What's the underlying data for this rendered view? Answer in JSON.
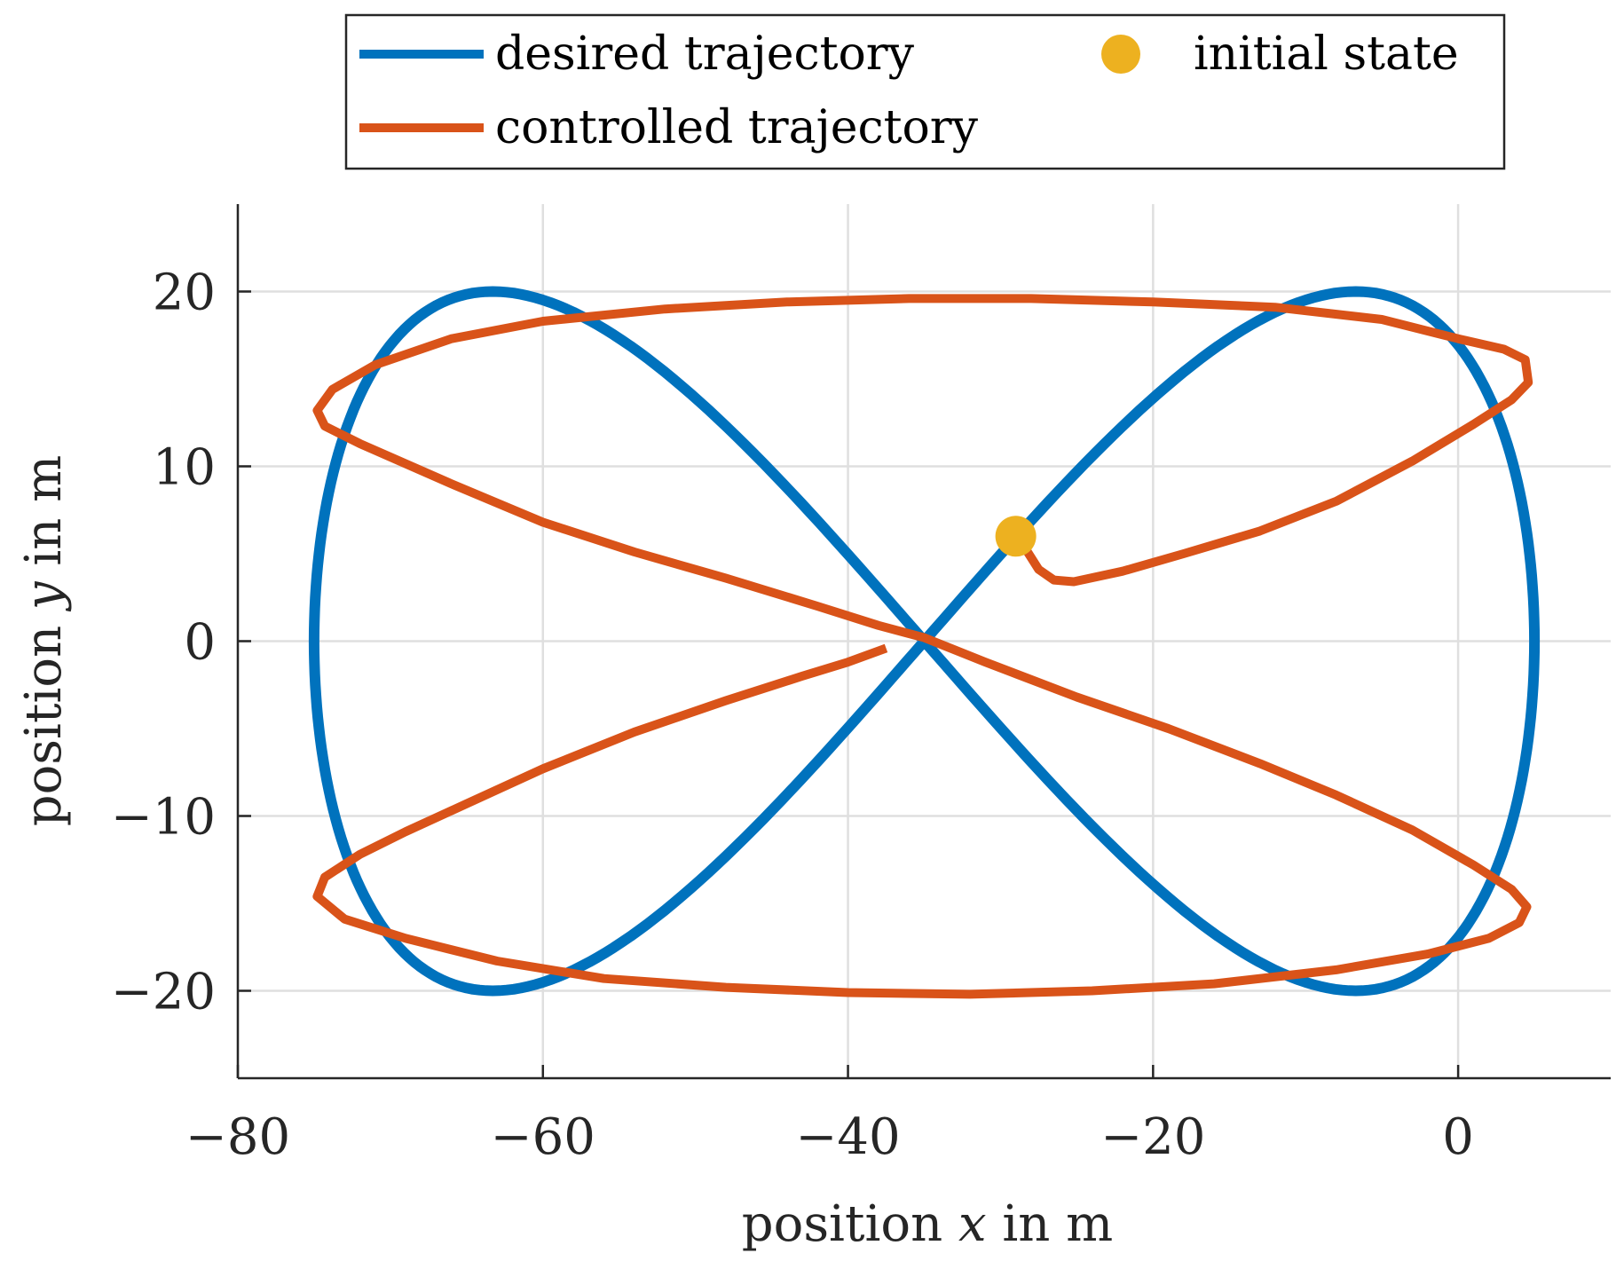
{
  "chart_data": {
    "type": "line",
    "title": "",
    "xlabel": {
      "prefix": "position ",
      "var": "x",
      "suffix": " in m"
    },
    "ylabel": {
      "prefix": "position ",
      "var": "y",
      "suffix": " in m"
    },
    "xlim": [
      -80,
      10
    ],
    "ylim": [
      -25,
      25
    ],
    "xticks": [
      -80,
      -60,
      -40,
      -20,
      0
    ],
    "yticks": [
      -20,
      -10,
      0,
      10,
      20
    ],
    "xtick_labels": [
      "−80",
      "−60",
      "−40",
      "−20",
      "0"
    ],
    "ytick_labels": [
      "−20",
      "−10",
      "0",
      "10",
      "20"
    ],
    "grid": true,
    "legend": {
      "placement": "top, outside plot",
      "entries": [
        {
          "label": "desired trajectory",
          "color": "#0072BD",
          "marker": "line"
        },
        {
          "label": "controlled trajectory",
          "color": "#D95319",
          "marker": "line"
        },
        {
          "label": "initial state",
          "color": "#EDB120",
          "marker": "dot"
        }
      ]
    },
    "series": [
      {
        "name": "desired trajectory",
        "color": "#0072BD",
        "kind": "figure-eight",
        "center": [
          -35,
          0
        ],
        "x_amplitude": 40,
        "y_amplitude": 20
      },
      {
        "name": "controlled trajectory",
        "color": "#D95319",
        "points": [
          [
            -29.0,
            6.0
          ],
          [
            -28.3,
            5.2
          ],
          [
            -27.5,
            4.1
          ],
          [
            -26.5,
            3.5
          ],
          [
            -25.2,
            3.4
          ],
          [
            -22.0,
            4.0
          ],
          [
            -18.0,
            5.0
          ],
          [
            -13.0,
            6.3
          ],
          [
            -8.0,
            8.0
          ],
          [
            -3.0,
            10.3
          ],
          [
            1.0,
            12.4
          ],
          [
            3.5,
            13.8
          ],
          [
            4.6,
            14.8
          ],
          [
            4.4,
            16.1
          ],
          [
            3.0,
            16.7
          ],
          [
            0.0,
            17.3
          ],
          [
            -5.0,
            18.4
          ],
          [
            -12.0,
            19.1
          ],
          [
            -20.0,
            19.4
          ],
          [
            -28.0,
            19.6
          ],
          [
            -36.0,
            19.6
          ],
          [
            -44.0,
            19.4
          ],
          [
            -52.0,
            19.0
          ],
          [
            -60.0,
            18.3
          ],
          [
            -66.0,
            17.3
          ],
          [
            -71.0,
            15.8
          ],
          [
            -73.8,
            14.4
          ],
          [
            -74.8,
            13.2
          ],
          [
            -74.3,
            12.3
          ],
          [
            -72.0,
            11.3
          ],
          [
            -66.0,
            9.0
          ],
          [
            -60.0,
            6.8
          ],
          [
            -54.0,
            5.1
          ],
          [
            -48.0,
            3.6
          ],
          [
            -42.0,
            2.0
          ],
          [
            -38.0,
            0.9
          ],
          [
            -35.0,
            0.2
          ],
          [
            -31.0,
            -1.2
          ],
          [
            -25.0,
            -3.2
          ],
          [
            -19.0,
            -5.0
          ],
          [
            -13.0,
            -7.0
          ],
          [
            -8.0,
            -8.8
          ],
          [
            -3.0,
            -10.8
          ],
          [
            1.0,
            -12.8
          ],
          [
            3.5,
            -14.2
          ],
          [
            4.5,
            -15.2
          ],
          [
            4.0,
            -16.1
          ],
          [
            2.0,
            -17.0
          ],
          [
            -2.0,
            -17.9
          ],
          [
            -8.0,
            -18.8
          ],
          [
            -16.0,
            -19.6
          ],
          [
            -24.0,
            -20.0
          ],
          [
            -32.0,
            -20.2
          ],
          [
            -40.0,
            -20.1
          ],
          [
            -48.0,
            -19.8
          ],
          [
            -56.0,
            -19.3
          ],
          [
            -63.0,
            -18.3
          ],
          [
            -69.0,
            -17.0
          ],
          [
            -73.0,
            -15.9
          ],
          [
            -74.8,
            -14.6
          ],
          [
            -74.3,
            -13.5
          ],
          [
            -72.0,
            -12.2
          ],
          [
            -69.0,
            -10.9
          ],
          [
            -65.0,
            -9.3
          ],
          [
            -60.0,
            -7.3
          ],
          [
            -54.0,
            -5.2
          ],
          [
            -48.0,
            -3.4
          ],
          [
            -43.0,
            -2.0
          ],
          [
            -40.0,
            -1.2
          ],
          [
            -37.5,
            -0.4
          ]
        ]
      }
    ],
    "initial_state": {
      "x": -29,
      "y": 6,
      "color": "#EDB120"
    }
  }
}
